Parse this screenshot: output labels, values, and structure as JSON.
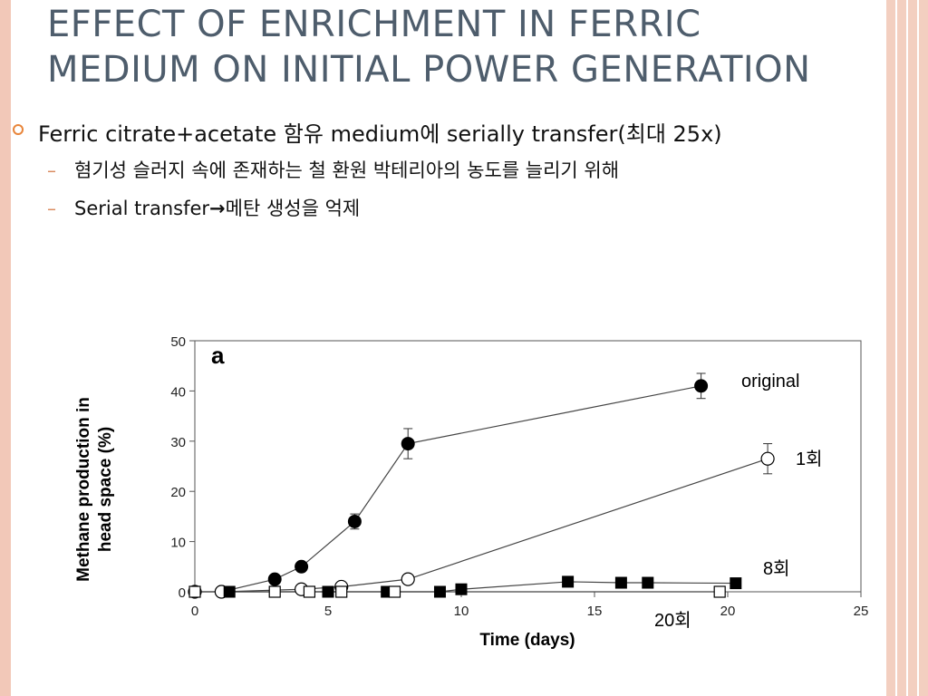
{
  "slide": {
    "title_line1": "EFFECT OF ENRICHMENT IN FERRIC",
    "title_line2": "MEDIUM ON INITIAL POWER GENERATION",
    "bullet1": "Ferric citrate+acetate 함유 medium에 serially transfer(최대 25x)",
    "sub1": "혐기성 슬러지 속에 존재하는 철 환원 박테리아의 농도를 늘리기 위해",
    "sub2_pre": "Serial transfer",
    "sub2_arrow": "→",
    "sub2_post": "메탄 생성을 억제",
    "dash": "–",
    "colors": {
      "title": "#4e5d6c",
      "bullet": "#e8853a",
      "band": "#f3cfc0"
    }
  },
  "chart_data": {
    "type": "line",
    "panel_label": "a",
    "xlabel": "Time (days)",
    "ylabel_line1": "Methane production in",
    "ylabel_line2": "head space (%)",
    "xlim": [
      0,
      25
    ],
    "ylim": [
      0,
      50
    ],
    "xticks": [
      "0",
      "5",
      "10",
      "15",
      "20",
      "25"
    ],
    "yticks": [
      "0",
      "10",
      "20",
      "30",
      "40",
      "50"
    ],
    "series": [
      {
        "name": "original",
        "marker": "filled-circle",
        "x": [
          1,
          3,
          4,
          6,
          8,
          19
        ],
        "y": [
          0,
          2.5,
          5,
          14,
          29.5,
          41
        ],
        "err": [
          0,
          0,
          0,
          1.5,
          3,
          2.5
        ]
      },
      {
        "name": "1회",
        "marker": "open-circle",
        "x": [
          0,
          1,
          4,
          5.5,
          8,
          21.5
        ],
        "y": [
          0,
          0,
          0.5,
          1,
          2.5,
          26.5
        ],
        "err": [
          0,
          0,
          0,
          0,
          0,
          3
        ]
      },
      {
        "name": "8회",
        "marker": "filled-square",
        "x": [
          1.3,
          5,
          7.2,
          9.2,
          10,
          14,
          16,
          17,
          20.3
        ],
        "y": [
          0,
          0,
          0,
          0,
          0.5,
          2,
          1.8,
          1.8,
          1.7
        ],
        "err": [
          0,
          0,
          0,
          0,
          0,
          0,
          0,
          0,
          0
        ]
      },
      {
        "name": "20회",
        "marker": "open-square",
        "x": [
          0,
          3,
          4.3,
          5.5,
          7.5,
          19.7
        ],
        "y": [
          0,
          0,
          0,
          0,
          0,
          0
        ],
        "err": [
          0,
          0,
          0,
          0,
          0,
          0
        ]
      }
    ]
  }
}
